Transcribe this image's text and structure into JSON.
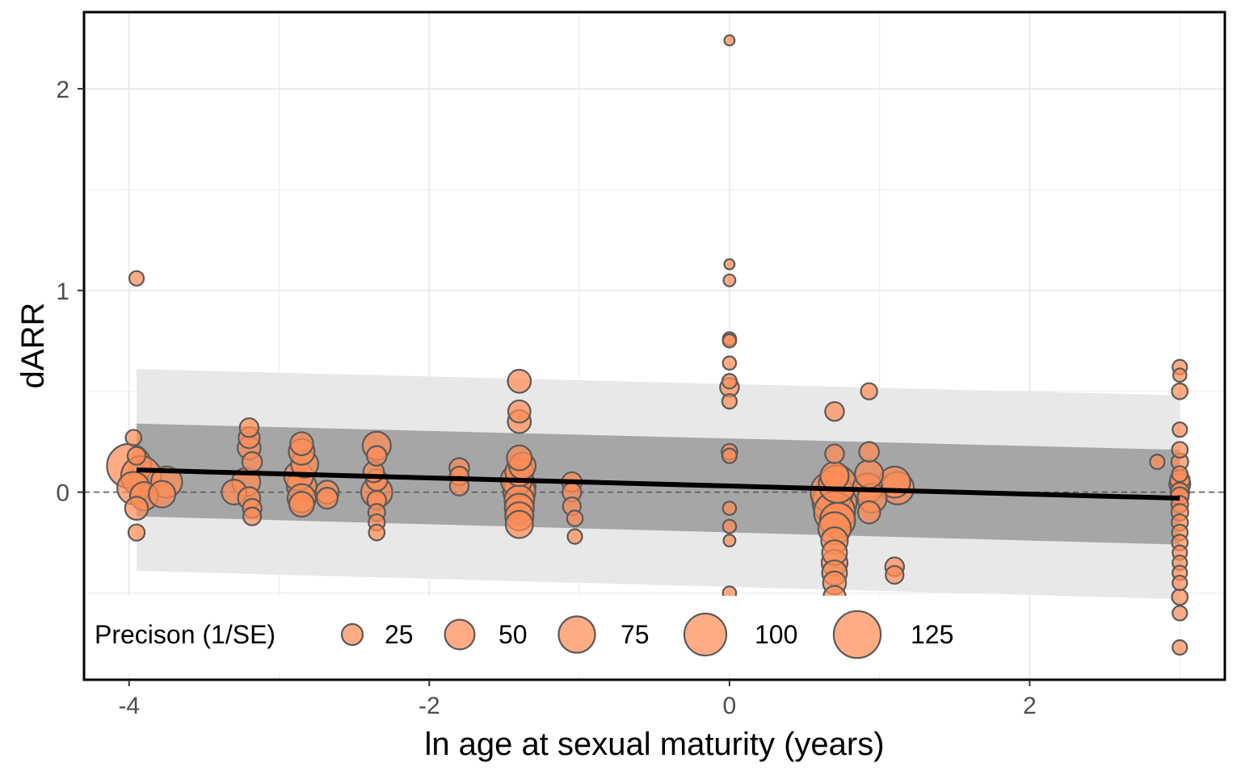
{
  "chart_data": {
    "type": "scatter",
    "title": "",
    "xlabel": "ln age at sexual maturity (years)",
    "ylabel": "dARR",
    "xlim": [
      -4.3,
      3.3
    ],
    "ylim": [
      -0.93,
      2.38
    ],
    "x_ticks": [
      {
        "value": -4,
        "label": "-4"
      },
      {
        "value": -2,
        "label": "-2"
      },
      {
        "value": 0,
        "label": "0"
      },
      {
        "value": 2,
        "label": "2"
      }
    ],
    "y_ticks": [
      {
        "value": 0,
        "label": "0"
      },
      {
        "value": 1,
        "label": "1"
      },
      {
        "value": 2,
        "label": "2"
      }
    ],
    "grid": true,
    "reference_line_y": 0,
    "colors": {
      "point_fill": "#FF8C55",
      "point_stroke": "#5a5a5a",
      "regression_line": "#000000",
      "confidence_band": "#a6a6a6",
      "prediction_band": "#e8e8e8",
      "grid": "#ebebeb"
    },
    "regression": {
      "x": [
        -3.95,
        3.0
      ],
      "y": [
        0.11,
        -0.03
      ]
    },
    "confidence_band": {
      "x": [
        -3.95,
        3.0
      ],
      "lower": [
        -0.12,
        -0.26
      ],
      "upper": [
        0.34,
        0.21
      ]
    },
    "prediction_band": {
      "x": [
        -3.95,
        3.0
      ],
      "lower": [
        -0.39,
        -0.53
      ],
      "upper": [
        0.61,
        0.48
      ]
    },
    "legend": {
      "title": "Precison (1/SE)",
      "position": "bottom-inside",
      "entries": [
        {
          "label": "25",
          "value": 25
        },
        {
          "label": "50",
          "value": 50
        },
        {
          "label": "75",
          "value": 75
        },
        {
          "label": "100",
          "value": 100
        },
        {
          "label": "125",
          "value": 125
        }
      ]
    },
    "points": [
      {
        "x": -3.95,
        "y": 1.06,
        "precision": 12
      },
      {
        "x": -3.97,
        "y": 0.27,
        "precision": 14
      },
      {
        "x": -3.95,
        "y": 0.18,
        "precision": 18
      },
      {
        "x": -4.0,
        "y": 0.13,
        "precision": 110
      },
      {
        "x": -3.92,
        "y": 0.08,
        "precision": 90
      },
      {
        "x": -3.97,
        "y": 0.02,
        "precision": 60
      },
      {
        "x": -3.9,
        "y": -0.02,
        "precision": 45
      },
      {
        "x": -3.95,
        "y": -0.08,
        "precision": 30
      },
      {
        "x": -3.95,
        "y": -0.2,
        "precision": 15
      },
      {
        "x": -3.75,
        "y": 0.05,
        "precision": 55
      },
      {
        "x": -3.78,
        "y": -0.01,
        "precision": 40
      },
      {
        "x": -3.2,
        "y": 0.32,
        "precision": 20
      },
      {
        "x": -3.2,
        "y": 0.27,
        "precision": 25
      },
      {
        "x": -3.2,
        "y": 0.22,
        "precision": 30
      },
      {
        "x": -3.18,
        "y": 0.15,
        "precision": 22
      },
      {
        "x": -3.22,
        "y": 0.05,
        "precision": 45
      },
      {
        "x": -3.3,
        "y": 0.0,
        "precision": 35
      },
      {
        "x": -3.2,
        "y": -0.03,
        "precision": 28
      },
      {
        "x": -3.18,
        "y": -0.08,
        "precision": 20
      },
      {
        "x": -3.18,
        "y": -0.12,
        "precision": 18
      },
      {
        "x": -2.85,
        "y": 0.24,
        "precision": 30
      },
      {
        "x": -2.85,
        "y": 0.2,
        "precision": 38
      },
      {
        "x": -2.83,
        "y": 0.14,
        "precision": 42
      },
      {
        "x": -2.87,
        "y": 0.08,
        "precision": 48
      },
      {
        "x": -2.85,
        "y": 0.03,
        "precision": 50
      },
      {
        "x": -2.85,
        "y": -0.03,
        "precision": 45
      },
      {
        "x": -2.85,
        "y": -0.06,
        "precision": 35
      },
      {
        "x": -2.68,
        "y": 0.0,
        "precision": 30
      },
      {
        "x": -2.68,
        "y": -0.03,
        "precision": 25
      },
      {
        "x": -2.35,
        "y": 0.23,
        "precision": 45
      },
      {
        "x": -2.35,
        "y": 0.18,
        "precision": 22
      },
      {
        "x": -2.37,
        "y": 0.1,
        "precision": 24
      },
      {
        "x": -2.35,
        "y": 0.06,
        "precision": 26
      },
      {
        "x": -2.35,
        "y": 0.0,
        "precision": 55
      },
      {
        "x": -2.35,
        "y": -0.04,
        "precision": 20
      },
      {
        "x": -2.35,
        "y": -0.1,
        "precision": 16
      },
      {
        "x": -2.35,
        "y": -0.15,
        "precision": 15
      },
      {
        "x": -2.35,
        "y": -0.2,
        "precision": 14
      },
      {
        "x": -1.8,
        "y": 0.12,
        "precision": 22
      },
      {
        "x": -1.8,
        "y": 0.08,
        "precision": 20
      },
      {
        "x": -1.8,
        "y": 0.03,
        "precision": 20
      },
      {
        "x": -1.4,
        "y": 0.55,
        "precision": 30
      },
      {
        "x": -1.4,
        "y": 0.4,
        "precision": 28
      },
      {
        "x": -1.4,
        "y": 0.35,
        "precision": 30
      },
      {
        "x": -1.4,
        "y": 0.17,
        "precision": 35
      },
      {
        "x": -1.38,
        "y": 0.13,
        "precision": 40
      },
      {
        "x": -1.4,
        "y": 0.1,
        "precision": 45
      },
      {
        "x": -1.42,
        "y": 0.06,
        "precision": 55
      },
      {
        "x": -1.4,
        "y": 0.03,
        "precision": 60
      },
      {
        "x": -1.4,
        "y": 0.0,
        "precision": 58
      },
      {
        "x": -1.4,
        "y": -0.04,
        "precision": 50
      },
      {
        "x": -1.4,
        "y": -0.08,
        "precision": 48
      },
      {
        "x": -1.4,
        "y": -0.12,
        "precision": 45
      },
      {
        "x": -1.4,
        "y": -0.16,
        "precision": 42
      },
      {
        "x": -1.05,
        "y": 0.05,
        "precision": 22
      },
      {
        "x": -1.05,
        "y": 0.0,
        "precision": 20
      },
      {
        "x": -1.05,
        "y": -0.07,
        "precision": 18
      },
      {
        "x": -1.03,
        "y": -0.13,
        "precision": 14
      },
      {
        "x": -1.03,
        "y": -0.22,
        "precision": 12
      },
      {
        "x": 0.0,
        "y": 2.24,
        "precision": 6
      },
      {
        "x": 0.0,
        "y": 1.13,
        "precision": 6
      },
      {
        "x": 0.0,
        "y": 1.05,
        "precision": 8
      },
      {
        "x": 0.0,
        "y": 0.76,
        "precision": 10
      },
      {
        "x": 0.0,
        "y": 0.75,
        "precision": 10
      },
      {
        "x": 0.0,
        "y": 0.64,
        "precision": 10
      },
      {
        "x": 0.0,
        "y": 0.55,
        "precision": 12
      },
      {
        "x": 0.0,
        "y": 0.52,
        "precision": 20
      },
      {
        "x": 0.0,
        "y": 0.45,
        "precision": 12
      },
      {
        "x": 0.0,
        "y": 0.2,
        "precision": 14
      },
      {
        "x": 0.0,
        "y": 0.18,
        "precision": 12
      },
      {
        "x": 0.0,
        "y": -0.08,
        "precision": 10
      },
      {
        "x": 0.0,
        "y": -0.17,
        "precision": 10
      },
      {
        "x": 0.0,
        "y": -0.24,
        "precision": 8
      },
      {
        "x": 0.0,
        "y": -0.5,
        "precision": 10
      },
      {
        "x": 0.7,
        "y": 0.4,
        "precision": 20
      },
      {
        "x": 0.7,
        "y": 0.19,
        "precision": 20
      },
      {
        "x": 0.7,
        "y": 0.08,
        "precision": 45
      },
      {
        "x": 0.72,
        "y": 0.04,
        "precision": 80
      },
      {
        "x": 0.68,
        "y": 0.0,
        "precision": 100
      },
      {
        "x": 0.7,
        "y": -0.05,
        "precision": 110
      },
      {
        "x": 0.7,
        "y": -0.1,
        "precision": 95
      },
      {
        "x": 0.72,
        "y": -0.14,
        "precision": 70
      },
      {
        "x": 0.7,
        "y": -0.18,
        "precision": 60
      },
      {
        "x": 0.7,
        "y": -0.24,
        "precision": 40
      },
      {
        "x": 0.7,
        "y": -0.3,
        "precision": 35
      },
      {
        "x": 0.7,
        "y": -0.35,
        "precision": 38
      },
      {
        "x": 0.7,
        "y": -0.4,
        "precision": 35
      },
      {
        "x": 0.7,
        "y": -0.45,
        "precision": 30
      },
      {
        "x": 0.7,
        "y": -0.52,
        "precision": 28
      },
      {
        "x": 0.7,
        "y": -0.57,
        "precision": 25
      },
      {
        "x": 0.93,
        "y": 0.5,
        "precision": 15
      },
      {
        "x": 0.93,
        "y": 0.2,
        "precision": 22
      },
      {
        "x": 0.93,
        "y": 0.09,
        "precision": 45
      },
      {
        "x": 0.92,
        "y": 0.02,
        "precision": 50
      },
      {
        "x": 0.95,
        "y": -0.03,
        "precision": 48
      },
      {
        "x": 0.93,
        "y": -0.1,
        "precision": 28
      },
      {
        "x": 1.1,
        "y": 0.05,
        "precision": 55
      },
      {
        "x": 1.12,
        "y": 0.02,
        "precision": 60
      },
      {
        "x": 1.1,
        "y": -0.37,
        "precision": 20
      },
      {
        "x": 1.1,
        "y": -0.41,
        "precision": 18
      },
      {
        "x": 3.0,
        "y": 0.62,
        "precision": 12
      },
      {
        "x": 3.0,
        "y": 0.58,
        "precision": 10
      },
      {
        "x": 3.0,
        "y": 0.5,
        "precision": 14
      },
      {
        "x": 3.0,
        "y": 0.31,
        "precision": 12
      },
      {
        "x": 3.0,
        "y": 0.21,
        "precision": 14
      },
      {
        "x": 2.85,
        "y": 0.15,
        "precision": 12
      },
      {
        "x": 3.0,
        "y": 0.15,
        "precision": 16
      },
      {
        "x": 3.0,
        "y": 0.09,
        "precision": 14
      },
      {
        "x": 3.0,
        "y": 0.06,
        "precision": 22
      },
      {
        "x": 3.0,
        "y": 0.04,
        "precision": 25
      },
      {
        "x": 3.0,
        "y": 0.0,
        "precision": 20
      },
      {
        "x": 3.0,
        "y": -0.02,
        "precision": 18
      },
      {
        "x": 3.0,
        "y": -0.06,
        "precision": 16
      },
      {
        "x": 3.0,
        "y": -0.1,
        "precision": 16
      },
      {
        "x": 3.0,
        "y": -0.15,
        "precision": 15
      },
      {
        "x": 3.0,
        "y": -0.2,
        "precision": 14
      },
      {
        "x": 3.0,
        "y": -0.25,
        "precision": 14
      },
      {
        "x": 3.0,
        "y": -0.3,
        "precision": 12
      },
      {
        "x": 3.0,
        "y": -0.35,
        "precision": 12
      },
      {
        "x": 3.0,
        "y": -0.4,
        "precision": 12
      },
      {
        "x": 3.0,
        "y": -0.45,
        "precision": 12
      },
      {
        "x": 3.0,
        "y": -0.52,
        "precision": 14
      },
      {
        "x": 3.0,
        "y": -0.6,
        "precision": 12
      },
      {
        "x": 3.0,
        "y": -0.77,
        "precision": 12
      }
    ]
  }
}
